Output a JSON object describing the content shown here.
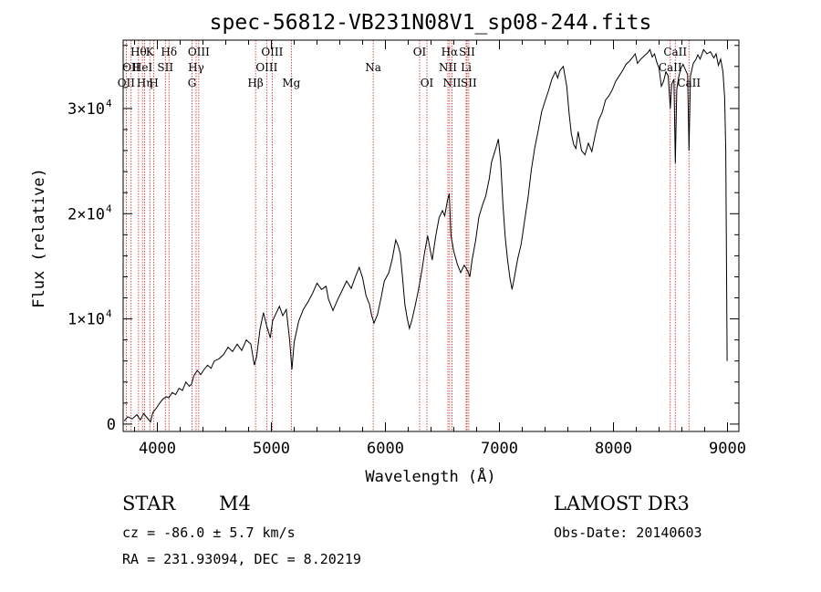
{
  "chart_data": {
    "type": "line",
    "title": "spec-56812-VB231N08V1_sp08-244.fits",
    "xlabel": "Wavelength (Å)",
    "ylabel": "Flux (relative)",
    "xlim": [
      3700,
      9100
    ],
    "ylim": [
      -700,
      36500
    ],
    "x_ticks": [
      {
        "value": 4000,
        "label": "4000"
      },
      {
        "value": 5000,
        "label": "5000"
      },
      {
        "value": 6000,
        "label": "6000"
      },
      {
        "value": 7000,
        "label": "7000"
      },
      {
        "value": 8000,
        "label": "8000"
      },
      {
        "value": 9000,
        "label": "9000"
      }
    ],
    "y_ticks": [
      {
        "value": 0,
        "label": "0",
        "exp": ""
      },
      {
        "value": 10000,
        "label": "1×10",
        "exp": "4"
      },
      {
        "value": 20000,
        "label": "2×10",
        "exp": "4"
      },
      {
        "value": 30000,
        "label": "3×10",
        "exp": "4"
      }
    ],
    "spectral_lines": [
      {
        "wavelength": 3727,
        "label": "OII",
        "row": 3
      },
      {
        "wavelength": 3770,
        "label": "OII",
        "row": 2
      },
      {
        "wavelength": 3835,
        "label": "Hθ",
        "row": 1
      },
      {
        "wavelength": 3869,
        "label": "HeI",
        "row": 2
      },
      {
        "wavelength": 3889,
        "label": "Hη",
        "row": 3
      },
      {
        "wavelength": 3934,
        "label": "K",
        "row": 1
      },
      {
        "wavelength": 3969,
        "label": "H",
        "row": 3
      },
      {
        "wavelength": 4070,
        "label": "SII",
        "row": 2
      },
      {
        "wavelength": 4102,
        "label": "Hδ",
        "row": 1
      },
      {
        "wavelength": 4304,
        "label": "G",
        "row": 3
      },
      {
        "wavelength": 4340,
        "label": "Hγ",
        "row": 2
      },
      {
        "wavelength": 4363,
        "label": "OIII",
        "row": 1
      },
      {
        "wavelength": 4861,
        "label": "Hβ",
        "row": 3
      },
      {
        "wavelength": 4959,
        "label": "OIII",
        "row": 2
      },
      {
        "wavelength": 5007,
        "label": "OIII",
        "row": 1
      },
      {
        "wavelength": 5175,
        "label": "Mg",
        "row": 3
      },
      {
        "wavelength": 5893,
        "label": "Na",
        "row": 2
      },
      {
        "wavelength": 6300,
        "label": "OI",
        "row": 1
      },
      {
        "wavelength": 6364,
        "label": "OI",
        "row": 3
      },
      {
        "wavelength": 6548,
        "label": "NII",
        "row": 2
      },
      {
        "wavelength": 6563,
        "label": "Hα",
        "row": 1
      },
      {
        "wavelength": 6584,
        "label": "NII",
        "row": 3
      },
      {
        "wavelength": 6708,
        "label": "Li",
        "row": 2
      },
      {
        "wavelength": 6716,
        "label": "SII",
        "row": 1
      },
      {
        "wavelength": 6731,
        "label": "SII",
        "row": 3
      },
      {
        "wavelength": 8498,
        "label": "CaII",
        "row": 2
      },
      {
        "wavelength": 8542,
        "label": "CaII",
        "row": 1
      },
      {
        "wavelength": 8662,
        "label": "CaII",
        "row": 3
      }
    ],
    "series": [
      {
        "name": "flux",
        "points": [
          [
            3710,
            300
          ],
          [
            3740,
            700
          ],
          [
            3780,
            500
          ],
          [
            3820,
            900
          ],
          [
            3850,
            400
          ],
          [
            3880,
            1000
          ],
          [
            3910,
            600
          ],
          [
            3940,
            200
          ],
          [
            3960,
            1100
          ],
          [
            3990,
            1500
          ],
          [
            4020,
            2000
          ],
          [
            4050,
            2400
          ],
          [
            4080,
            2600
          ],
          [
            4100,
            2500
          ],
          [
            4130,
            3000
          ],
          [
            4160,
            2800
          ],
          [
            4190,
            3400
          ],
          [
            4220,
            3200
          ],
          [
            4250,
            4000
          ],
          [
            4280,
            3600
          ],
          [
            4300,
            3800
          ],
          [
            4320,
            4600
          ],
          [
            4350,
            5100
          ],
          [
            4380,
            4700
          ],
          [
            4410,
            5200
          ],
          [
            4440,
            5600
          ],
          [
            4470,
            5300
          ],
          [
            4500,
            6000
          ],
          [
            4540,
            6200
          ],
          [
            4580,
            6600
          ],
          [
            4620,
            7300
          ],
          [
            4660,
            6900
          ],
          [
            4700,
            7600
          ],
          [
            4740,
            7000
          ],
          [
            4780,
            8000
          ],
          [
            4820,
            7600
          ],
          [
            4850,
            5600
          ],
          [
            4870,
            6400
          ],
          [
            4900,
            9000
          ],
          [
            4930,
            10600
          ],
          [
            4960,
            9300
          ],
          [
            4990,
            8200
          ],
          [
            5010,
            9800
          ],
          [
            5040,
            10500
          ],
          [
            5070,
            11200
          ],
          [
            5100,
            10300
          ],
          [
            5130,
            10900
          ],
          [
            5160,
            8000
          ],
          [
            5180,
            5200
          ],
          [
            5200,
            7800
          ],
          [
            5240,
            9800
          ],
          [
            5280,
            10900
          ],
          [
            5320,
            11600
          ],
          [
            5360,
            12400
          ],
          [
            5400,
            13400
          ],
          [
            5440,
            12800
          ],
          [
            5480,
            13100
          ],
          [
            5500,
            11900
          ],
          [
            5540,
            10800
          ],
          [
            5580,
            11800
          ],
          [
            5620,
            12700
          ],
          [
            5660,
            13600
          ],
          [
            5700,
            12900
          ],
          [
            5740,
            14100
          ],
          [
            5770,
            14900
          ],
          [
            5800,
            13900
          ],
          [
            5830,
            12200
          ],
          [
            5860,
            11400
          ],
          [
            5880,
            10300
          ],
          [
            5900,
            9600
          ],
          [
            5930,
            10400
          ],
          [
            5960,
            11900
          ],
          [
            5990,
            13600
          ],
          [
            6030,
            14400
          ],
          [
            6060,
            15700
          ],
          [
            6090,
            17500
          ],
          [
            6110,
            17000
          ],
          [
            6130,
            16200
          ],
          [
            6150,
            13900
          ],
          [
            6170,
            11400
          ],
          [
            6190,
            10100
          ],
          [
            6210,
            9100
          ],
          [
            6230,
            9800
          ],
          [
            6260,
            11200
          ],
          [
            6290,
            12800
          ],
          [
            6320,
            14600
          ],
          [
            6345,
            16400
          ],
          [
            6370,
            17900
          ],
          [
            6390,
            16700
          ],
          [
            6410,
            15600
          ],
          [
            6440,
            17800
          ],
          [
            6470,
            19600
          ],
          [
            6500,
            20300
          ],
          [
            6520,
            19800
          ],
          [
            6545,
            21300
          ],
          [
            6560,
            21900
          ],
          [
            6575,
            17900
          ],
          [
            6600,
            16400
          ],
          [
            6630,
            15200
          ],
          [
            6660,
            14400
          ],
          [
            6690,
            15100
          ],
          [
            6720,
            14600
          ],
          [
            6740,
            14000
          ],
          [
            6760,
            15600
          ],
          [
            6790,
            17400
          ],
          [
            6820,
            19700
          ],
          [
            6850,
            20800
          ],
          [
            6880,
            21700
          ],
          [
            6910,
            23300
          ],
          [
            6930,
            24900
          ],
          [
            6950,
            25600
          ],
          [
            6970,
            26300
          ],
          [
            6990,
            27100
          ],
          [
            7010,
            25000
          ],
          [
            7030,
            20900
          ],
          [
            7050,
            17800
          ],
          [
            7070,
            15700
          ],
          [
            7090,
            14000
          ],
          [
            7110,
            12800
          ],
          [
            7130,
            13900
          ],
          [
            7160,
            15700
          ],
          [
            7190,
            17100
          ],
          [
            7220,
            19300
          ],
          [
            7250,
            21500
          ],
          [
            7280,
            24200
          ],
          [
            7310,
            26300
          ],
          [
            7340,
            27900
          ],
          [
            7370,
            29700
          ],
          [
            7400,
            30700
          ],
          [
            7430,
            31700
          ],
          [
            7460,
            32800
          ],
          [
            7490,
            33500
          ],
          [
            7510,
            32900
          ],
          [
            7530,
            33600
          ],
          [
            7560,
            34000
          ],
          [
            7590,
            32100
          ],
          [
            7610,
            29600
          ],
          [
            7630,
            27600
          ],
          [
            7650,
            26600
          ],
          [
            7670,
            26200
          ],
          [
            7690,
            27800
          ],
          [
            7720,
            26000
          ],
          [
            7750,
            25600
          ],
          [
            7780,
            26700
          ],
          [
            7810,
            25900
          ],
          [
            7840,
            27500
          ],
          [
            7870,
            28900
          ],
          [
            7900,
            29600
          ],
          [
            7930,
            30800
          ],
          [
            7960,
            31200
          ],
          [
            7990,
            31800
          ],
          [
            8020,
            32600
          ],
          [
            8050,
            33100
          ],
          [
            8080,
            33600
          ],
          [
            8110,
            34200
          ],
          [
            8140,
            34500
          ],
          [
            8170,
            34900
          ],
          [
            8190,
            35200
          ],
          [
            8210,
            34300
          ],
          [
            8240,
            34700
          ],
          [
            8270,
            35000
          ],
          [
            8300,
            35300
          ],
          [
            8320,
            35600
          ],
          [
            8340,
            34900
          ],
          [
            8360,
            35200
          ],
          [
            8380,
            34400
          ],
          [
            8400,
            33800
          ],
          [
            8420,
            32100
          ],
          [
            8440,
            32600
          ],
          [
            8460,
            33500
          ],
          [
            8480,
            33100
          ],
          [
            8498,
            30000
          ],
          [
            8510,
            32300
          ],
          [
            8530,
            32800
          ],
          [
            8542,
            24800
          ],
          [
            8555,
            31800
          ],
          [
            8570,
            32900
          ],
          [
            8590,
            33800
          ],
          [
            8610,
            34200
          ],
          [
            8630,
            33700
          ],
          [
            8650,
            33200
          ],
          [
            8662,
            26000
          ],
          [
            8675,
            33100
          ],
          [
            8700,
            34300
          ],
          [
            8720,
            34600
          ],
          [
            8740,
            35100
          ],
          [
            8760,
            34700
          ],
          [
            8790,
            35600
          ],
          [
            8820,
            35200
          ],
          [
            8850,
            35400
          ],
          [
            8880,
            34800
          ],
          [
            8900,
            35200
          ],
          [
            8920,
            34100
          ],
          [
            8940,
            34700
          ],
          [
            8960,
            33500
          ],
          [
            8975,
            31000
          ],
          [
            8985,
            26000
          ],
          [
            8992,
            14000
          ],
          [
            8997,
            6000
          ]
        ]
      }
    ]
  },
  "info": {
    "object_type": "STAR",
    "subclass": "M4",
    "survey": "LAMOST DR3",
    "redshift": "cz = -86.0 ± 5.7 km/s",
    "obs_date": "Obs-Date: 20140603",
    "coordinates": "RA = 231.93094, DEC =   8.20219"
  },
  "colors": {
    "axis": "#000000",
    "spectrum": "#000000",
    "line_markers": "#cc2222"
  }
}
